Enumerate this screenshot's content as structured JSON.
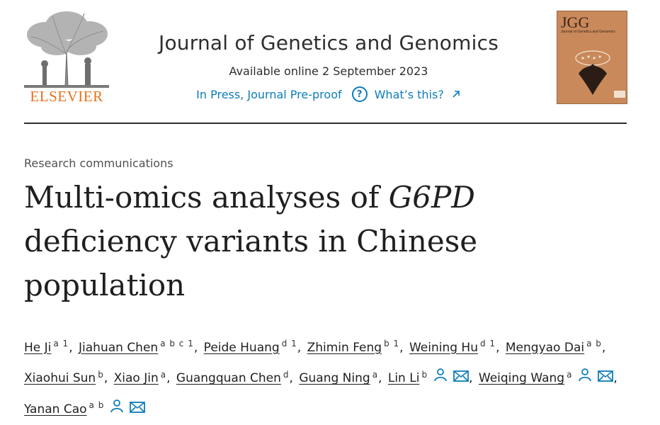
{
  "publisher": {
    "logo_text": "ELSEVIER"
  },
  "journal": {
    "title": "Journal of Genetics and Genomics",
    "available_online": "Available online 2 September 2023",
    "status_link": "In Press, Journal Pre-proof",
    "help_link": "What’s this?",
    "cover_title": "JGG",
    "cover_subtitle": "Journal of Genetics and Genomics"
  },
  "article": {
    "type": "Research communications",
    "title_pre": "Multi-omics analyses of ",
    "title_italic": "G6PD",
    "title_post": " deficiency variants in Chinese population"
  },
  "authors": [
    {
      "name": "He Ji",
      "aff": "a 1",
      "sep": ","
    },
    {
      "name": "Jiahuan Chen",
      "aff": "a b c 1",
      "sep": ","
    },
    {
      "name": "Peide Huang",
      "aff": "d 1",
      "sep": ","
    },
    {
      "name": "Zhimin Feng",
      "aff": "b 1",
      "sep": ","
    },
    {
      "name": "Weining Hu",
      "aff": "d 1",
      "sep": ","
    },
    {
      "name": "Mengyao Dai",
      "aff": "a b",
      "sep": ","
    },
    {
      "name": "Xiaohui Sun",
      "aff": "b",
      "sep": ","
    },
    {
      "name": "Xiao Jin",
      "aff": "a",
      "sep": ","
    },
    {
      "name": "Guangquan Chen",
      "aff": "d",
      "sep": ","
    },
    {
      "name": "Guang Ning",
      "aff": "a",
      "sep": ","
    },
    {
      "name": "Lin Li",
      "aff": "b",
      "sep": ",",
      "icons": true
    },
    {
      "name": "Weiqing Wang",
      "aff": "a",
      "sep": ",",
      "icons": true
    },
    {
      "name": "Yanan Cao",
      "aff": "a b",
      "sep": "",
      "icons": true
    }
  ],
  "icons": {
    "help": "question-circle-icon",
    "external": "arrow-up-right-icon",
    "person": "person-icon",
    "email": "envelope-icon"
  },
  "colors": {
    "link": "#0c7dbb",
    "elsevier_orange": "#e9711c",
    "divider": "#2e2e2e"
  }
}
